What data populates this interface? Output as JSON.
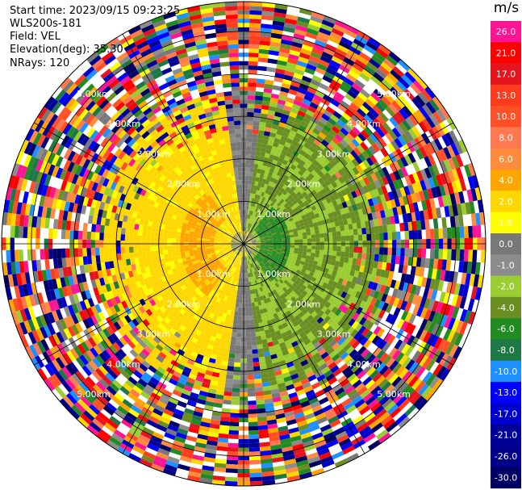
{
  "info": {
    "start_time": "Start time: 2023/09/15 09:23:25",
    "instrument": "WLS200s-181",
    "field": "Field: VEL",
    "elevation": "Elevation(deg): 35.30",
    "nrays": "NRays: 120"
  },
  "chart_data": {
    "type": "heatmap",
    "projection": "polar-ppi",
    "field": "VEL",
    "units": "m/s",
    "n_rays": 120,
    "range_rings_km": [
      1.0,
      2.0,
      3.0,
      4.0,
      5.0
    ],
    "ring_labels": [
      "1.00km",
      "2.00km",
      "3.00km",
      "4.00km",
      "5.00km"
    ],
    "max_range_km": 5.7,
    "spoke_angles_deg": [
      0,
      30,
      60,
      90,
      120,
      150,
      180,
      210,
      240,
      270,
      300,
      330
    ],
    "colorbar": {
      "title": "m/s",
      "tick_labels": [
        "26.0",
        "21.0",
        "17.0",
        "13.0",
        "10.0",
        "8.0",
        "6.0",
        "4.0",
        "2.0",
        "1.0",
        "0.0",
        "-1.0",
        "-2.0",
        "-4.0",
        "-6.0",
        "-8.0",
        "-10.0",
        "-13.0",
        "-17.0",
        "-21.0",
        "-26.0",
        "-30.0"
      ],
      "colors": [
        "#ff1493",
        "#ff0000",
        "#e6141e",
        "#ff3c1e",
        "#ff5028",
        "#ff7850",
        "#ff8c3c",
        "#ffa500",
        "#ffd700",
        "#ffff00",
        "#787878",
        "#8c8c8c",
        "#9acd32",
        "#6b8e23",
        "#228b22",
        "#1e7846",
        "#1e90ff",
        "#0000ff",
        "#0000cd",
        "#000096",
        "#00008b",
        "#000064"
      ]
    },
    "velocity_pattern": {
      "west_sector": "positive (1 to 6 m/s)",
      "east_sector": "negative (-1 to -6 m/s)",
      "far_range": "noisy, all colors"
    }
  }
}
